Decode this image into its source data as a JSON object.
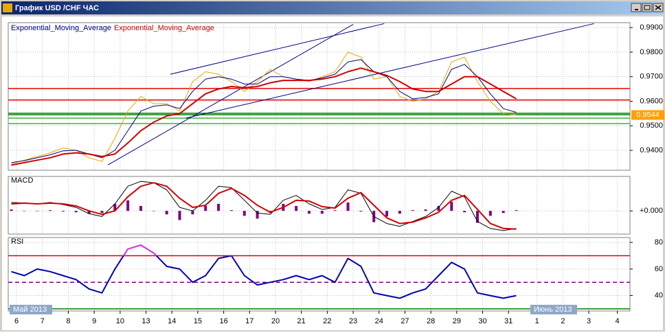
{
  "window": {
    "title": "График USD /CHF ЧАС"
  },
  "chart_data": [
    {
      "type": "line",
      "legend": "top-left",
      "x": [
        -0.2,
        0.3,
        0.8,
        1.3,
        1.8,
        2.3,
        2.8,
        3.3,
        3.8,
        4.3,
        4.8,
        5.3,
        5.8,
        6.3,
        6.8,
        7.3,
        7.8,
        8.3,
        8.8,
        9.3,
        9.8,
        10.3,
        10.8,
        11.3,
        11.8,
        12.3,
        12.8,
        13.3,
        13.8,
        14.3,
        14.8,
        15.3,
        15.8,
        16.3,
        16.8,
        17.3,
        17.8,
        18.3,
        18.8,
        19.3
      ],
      "ylim": [
        0.9319,
        0.992
      ],
      "yticks": [
        {
          "value": 0.94,
          "label": "0.9400"
        },
        {
          "value": 0.95,
          "label": "0.9500"
        },
        {
          "value": 0.96,
          "label": "0.9600"
        },
        {
          "value": 0.97,
          "label": "0.9700"
        },
        {
          "value": 0.98,
          "label": "0.9800"
        },
        {
          "value": 0.99,
          "label": "0.9900"
        }
      ],
      "grid": true,
      "last_price": 0.9544,
      "last_price_color": "#ffa000",
      "series": [
        {
          "color": "#e8a800",
          "width": 1,
          "values": [
            0.9345,
            0.936,
            0.9375,
            0.939,
            0.941,
            0.94,
            0.937,
            0.9355,
            0.945,
            0.956,
            0.962,
            0.959,
            0.959,
            0.956,
            0.968,
            0.972,
            0.971,
            0.968,
            0.964,
            0.968,
            0.973,
            0.97,
            0.969,
            0.968,
            0.97,
            0.972,
            0.98,
            0.978,
            0.969,
            0.97,
            0.962,
            0.96,
            0.961,
            0.964,
            0.976,
            0.978,
            0.968,
            0.96,
            0.955,
            0.9544
          ]
        },
        {
          "name": "Exponential_Moving_Average",
          "color": "#000080",
          "width": 1,
          "values": [
            0.935,
            0.9358,
            0.937,
            0.9382,
            0.9398,
            0.94,
            0.9385,
            0.937,
            0.94,
            0.948,
            0.956,
            0.958,
            0.9585,
            0.957,
            0.964,
            0.969,
            0.97,
            0.969,
            0.967,
            0.967,
            0.97,
            0.97,
            0.969,
            0.9685,
            0.9695,
            0.971,
            0.976,
            0.977,
            0.972,
            0.97,
            0.964,
            0.961,
            0.9615,
            0.963,
            0.973,
            0.975,
            0.97,
            0.963,
            0.957,
            0.9555
          ]
        },
        {
          "name": "Exponential_Moving_Average",
          "color": "#d00000",
          "width": 2,
          "values": [
            0.934,
            0.935,
            0.936,
            0.937,
            0.9385,
            0.939,
            0.9385,
            0.9375,
            0.9385,
            0.943,
            0.948,
            0.9515,
            0.954,
            0.955,
            0.959,
            0.963,
            0.965,
            0.966,
            0.9655,
            0.966,
            0.9675,
            0.9685,
            0.9685,
            0.9685,
            0.969,
            0.97,
            0.972,
            0.9735,
            0.972,
            0.9705,
            0.968,
            0.965,
            0.964,
            0.964,
            0.967,
            0.97,
            0.97,
            0.967,
            0.964,
            0.961
          ]
        }
      ],
      "levels": [
        {
          "value": 0.9652,
          "color": "#e00000"
        },
        {
          "value": 0.9605,
          "color": "#e00000"
        },
        {
          "value": 0.9551,
          "color": "#008000"
        },
        {
          "value": 0.9545,
          "color": "#008000"
        },
        {
          "value": 0.9531,
          "color": "#40b040"
        },
        {
          "value": 0.9509,
          "color": "#40b040"
        }
      ],
      "trendlines": [
        {
          "x": [
            5.94,
            14.2
          ],
          "y": [
            0.971,
            0.9916
          ]
        },
        {
          "x": [
            3.53,
            13.0
          ],
          "y": [
            0.9341,
            0.9913
          ]
        },
        {
          "x": [
            6.53,
            22.3
          ],
          "y": [
            0.9531,
            0.9916
          ]
        }
      ],
      "trendline_color": "#000080"
    },
    {
      "type": "line",
      "title": "MACD",
      "x": [
        -0.2,
        0.3,
        0.8,
        1.3,
        1.8,
        2.3,
        2.8,
        3.3,
        3.8,
        4.3,
        4.8,
        5.3,
        5.8,
        6.3,
        6.8,
        7.3,
        7.8,
        8.3,
        8.8,
        9.3,
        9.8,
        10.3,
        10.8,
        11.3,
        11.8,
        12.3,
        12.8,
        13.3,
        13.8,
        14.3,
        14.8,
        15.3,
        15.8,
        16.3,
        16.8,
        17.3,
        17.8,
        18.3,
        18.8,
        19.3
      ],
      "ylim": [
        -0.0033,
        0.0049
      ],
      "yticks": [
        {
          "value": 0,
          "label": "+0.000"
        }
      ],
      "series": [
        {
          "type": "bar",
          "color": "#800080",
          "values": [
            0.0002,
            0,
            0,
            0.0001,
            -0.0001,
            -0.0002,
            -0.0004,
            -0.0003,
            0.001,
            0.0015,
            0.0007,
            0,
            -0.0005,
            -0.0013,
            -0.0005,
            0.0007,
            0.001,
            0.0001,
            -0.0007,
            -0.0011,
            -0.0003,
            0.001,
            0.0007,
            -0.0004,
            -0.0004,
            0.0001,
            0.0012,
            -0.0001,
            -0.0016,
            -0.0008,
            -0.0004,
            0.0001,
            0.0002,
            0.0007,
            0.0013,
            -0.0002,
            -0.0017,
            -0.0007,
            -0.0003,
            0.0001
          ]
        },
        {
          "color": "#000000",
          "width": 1,
          "values": [
            0.0012,
            0.0011,
            0.001,
            0.0012,
            0.0009,
            0.0005,
            -0.0004,
            -0.0008,
            0.001,
            0.0035,
            0.0042,
            0.004,
            0.003,
            0.0005,
            0,
            0.0015,
            0.0035,
            0.0033,
            0.0015,
            -0.0003,
            -0.0005,
            0.0015,
            0.0022,
            0.001,
            0.0002,
            0.0005,
            0.003,
            0.0025,
            -0.0008,
            -0.0018,
            -0.0022,
            -0.0015,
            -0.0008,
            0.0005,
            0.0028,
            0.002,
            -0.0015,
            -0.0025,
            -0.0028,
            -0.0025
          ]
        },
        {
          "color": "#d00000",
          "width": 2,
          "values": [
            0.001,
            0.0011,
            0.001,
            0.0011,
            0.001,
            0.0007,
            0,
            -0.0005,
            0,
            0.002,
            0.0035,
            0.004,
            0.0035,
            0.0018,
            0.0005,
            0.0008,
            0.0025,
            0.0032,
            0.0022,
            0.0008,
            -0.0002,
            0.0005,
            0.0015,
            0.0014,
            0.0006,
            0.0004,
            0.0018,
            0.0026,
            0.0008,
            -0.001,
            -0.0018,
            -0.0016,
            -0.001,
            -0.0002,
            0.0015,
            0.0022,
            0.0002,
            -0.0018,
            -0.0025,
            -0.0026
          ]
        }
      ]
    },
    {
      "type": "line",
      "title": "RSI",
      "x": [
        -0.2,
        0.3,
        0.8,
        1.3,
        1.8,
        2.3,
        2.8,
        3.3,
        3.8,
        4.3,
        4.8,
        5.3,
        5.8,
        6.3,
        6.8,
        7.3,
        7.8,
        8.3,
        8.8,
        9.3,
        9.8,
        10.3,
        10.8,
        11.3,
        11.8,
        12.3,
        12.8,
        13.3,
        13.8,
        14.3,
        14.8,
        15.3,
        15.8,
        16.3,
        16.8,
        17.3,
        17.8,
        18.3,
        18.8,
        19.3
      ],
      "ylim": [
        28.4,
        83.7
      ],
      "yticks": [
        40,
        60,
        80
      ],
      "xlim": [
        -0.32,
        23.69
      ],
      "xticks": [
        {
          "value": 0,
          "label": "6"
        },
        {
          "value": 1,
          "label": "7"
        },
        {
          "value": 2,
          "label": "8"
        },
        {
          "value": 3,
          "label": "9"
        },
        {
          "value": 4,
          "label": "10"
        },
        {
          "value": 5,
          "label": "13"
        },
        {
          "value": 6,
          "label": "14"
        },
        {
          "value": 7,
          "label": "15"
        },
        {
          "value": 8,
          "label": "16"
        },
        {
          "value": 9,
          "label": "17"
        },
        {
          "value": 10,
          "label": "20"
        },
        {
          "value": 11,
          "label": "21"
        },
        {
          "value": 12,
          "label": "22"
        },
        {
          "value": 13,
          "label": "23"
        },
        {
          "value": 14,
          "label": "24"
        },
        {
          "value": 15,
          "label": "27"
        },
        {
          "value": 16,
          "label": "28"
        },
        {
          "value": 17,
          "label": "29"
        },
        {
          "value": 18,
          "label": "30"
        },
        {
          "value": 19,
          "label": "31"
        },
        {
          "value": 20.1,
          "label": "1"
        },
        {
          "value": 21.1,
          "label": "2"
        },
        {
          "value": 22.1,
          "label": "3"
        },
        {
          "value": 23.2,
          "label": "4"
        }
      ],
      "month_labels": [
        "Май 2013",
        "Июнь 2013"
      ],
      "series": [
        {
          "color": "#0000b0",
          "width": 2,
          "overbought": 70,
          "overbought_color": "#e040e0",
          "values": [
            58,
            55,
            60,
            58,
            55,
            52,
            45,
            42,
            60,
            75,
            78,
            72,
            62,
            60,
            50,
            55,
            68,
            70,
            55,
            48,
            50,
            52,
            55,
            52,
            55,
            50,
            68,
            62,
            42,
            40,
            38,
            42,
            45,
            55,
            65,
            60,
            42,
            40,
            38,
            40
          ]
        }
      ],
      "levels": [
        {
          "value": 70,
          "color": "#e00000"
        },
        {
          "value": 50,
          "color": "#800080",
          "style": "dashed"
        },
        {
          "value": 30,
          "color": "#008000"
        }
      ]
    }
  ]
}
